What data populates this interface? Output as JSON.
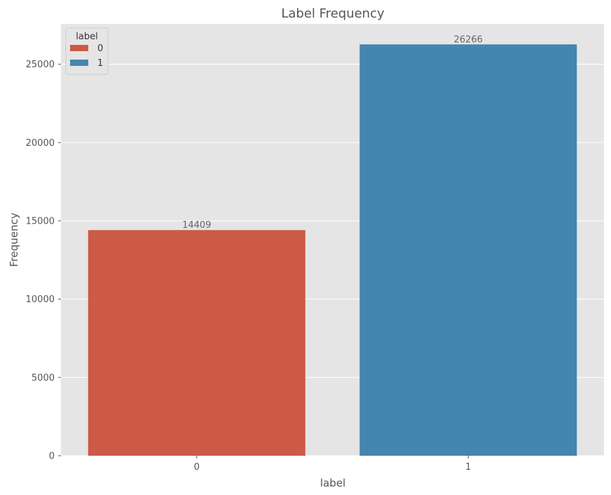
{
  "chart_data": {
    "type": "bar",
    "title": "Label Frequency",
    "xlabel": "label",
    "ylabel": "Frequency",
    "categories": [
      "0",
      "1"
    ],
    "values": [
      14409,
      26266
    ],
    "data_labels": [
      "14409",
      "26266"
    ],
    "colors": [
      "#CC5A47",
      "#4486AE"
    ],
    "ylim": [
      0,
      27579
    ],
    "yticks": [
      0,
      5000,
      10000,
      15000,
      20000,
      25000
    ],
    "grid": true,
    "background_color": "#E5E5E5",
    "grid_color": "#FFFFFF",
    "legend": {
      "title": "label",
      "position": "top-left",
      "entries": [
        {
          "label": "0",
          "color": "#CC5A47"
        },
        {
          "label": "1",
          "color": "#4486AE"
        }
      ]
    }
  }
}
